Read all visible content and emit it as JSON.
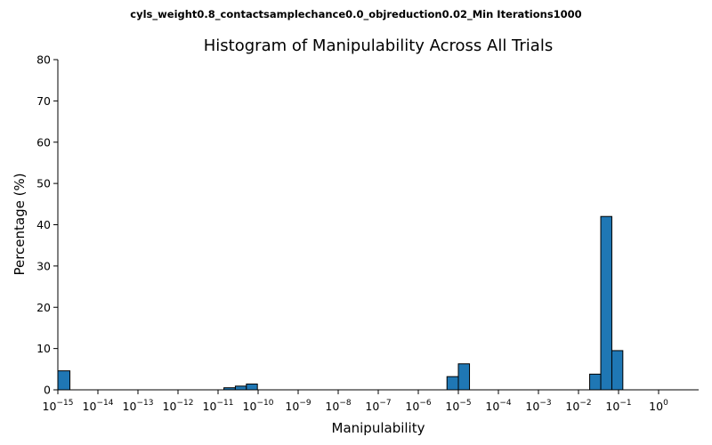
{
  "chart_data": {
    "type": "bar",
    "suptitle": "cyls_weight0.8_contactsamplechance0.0_objreduction0.02_Min Iterations1000",
    "title": "Histogram of Manipulability Across All Trials",
    "xlabel": "Manipulability",
    "ylabel": "Percentage (%)",
    "xscale": "log",
    "xlim": [
      1e-15,
      10
    ],
    "ylim": [
      0,
      80
    ],
    "grid": false,
    "x_ticks": [
      {
        "base": "10",
        "exp": "−15",
        "value": 1e-15
      },
      {
        "base": "10",
        "exp": "−14",
        "value": 1e-14
      },
      {
        "base": "10",
        "exp": "−13",
        "value": 1e-13
      },
      {
        "base": "10",
        "exp": "−12",
        "value": 1e-12
      },
      {
        "base": "10",
        "exp": "−11",
        "value": 1e-11
      },
      {
        "base": "10",
        "exp": "−10",
        "value": 1e-10
      },
      {
        "base": "10",
        "exp": "−9",
        "value": 1e-09
      },
      {
        "base": "10",
        "exp": "−8",
        "value": 1e-08
      },
      {
        "base": "10",
        "exp": "−7",
        "value": 1e-07
      },
      {
        "base": "10",
        "exp": "−6",
        "value": 1e-06
      },
      {
        "base": "10",
        "exp": "−5",
        "value": 1e-05
      },
      {
        "base": "10",
        "exp": "−4",
        "value": 0.0001
      },
      {
        "base": "10",
        "exp": "−3",
        "value": 0.001
      },
      {
        "base": "10",
        "exp": "−2",
        "value": 0.01
      },
      {
        "base": "10",
        "exp": "−1",
        "value": 0.1
      },
      {
        "base": "10",
        "exp": "0",
        "value": 1
      }
    ],
    "y_ticks": [
      0,
      10,
      20,
      30,
      40,
      50,
      60,
      70,
      80
    ],
    "bins": [
      {
        "x0": 1e-15,
        "x1": 2e-15,
        "value": 4.6
      },
      {
        "x0": 1.4e-11,
        "x1": 2.7e-11,
        "value": 0.5
      },
      {
        "x0": 2.7e-11,
        "x1": 5.1e-11,
        "value": 0.9
      },
      {
        "x0": 5.1e-11,
        "x1": 9.6e-11,
        "value": 1.4
      },
      {
        "x0": 5.2e-06,
        "x1": 1e-05,
        "value": 3.2
      },
      {
        "x0": 1e-05,
        "x1": 1.9e-05,
        "value": 6.3
      },
      {
        "x0": 0.019,
        "x1": 0.036,
        "value": 3.8
      },
      {
        "x0": 0.036,
        "x1": 0.068,
        "value": 42.0
      },
      {
        "x0": 0.068,
        "x1": 0.128,
        "value": 9.5
      }
    ]
  }
}
